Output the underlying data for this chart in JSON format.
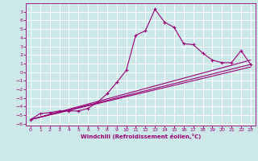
{
  "xlabel": "Windchill (Refroidissement éolien,°C)",
  "bg_color": "#cce8e8",
  "grid_color": "#ffffff",
  "line_color": "#990077",
  "xlim": [
    -0.5,
    23.5
  ],
  "ylim": [
    -6.2,
    8.0
  ],
  "x_ticks": [
    0,
    1,
    2,
    3,
    4,
    5,
    6,
    7,
    8,
    9,
    10,
    11,
    12,
    13,
    14,
    15,
    16,
    17,
    18,
    19,
    20,
    21,
    22,
    23
  ],
  "y_ticks": [
    -6,
    -5,
    -4,
    -3,
    -2,
    -1,
    0,
    1,
    2,
    3,
    4,
    5,
    6,
    7
  ],
  "line1_x": [
    0,
    1,
    2,
    3,
    4,
    5,
    6,
    7,
    8,
    9,
    10,
    11,
    12,
    13,
    14,
    15,
    16,
    17,
    18,
    19,
    20,
    21,
    22,
    23
  ],
  "line1_y": [
    -5.5,
    -4.8,
    -4.7,
    -4.5,
    -4.5,
    -4.5,
    -4.2,
    -3.5,
    -2.5,
    -1.2,
    0.2,
    4.3,
    4.8,
    7.3,
    5.8,
    5.2,
    3.3,
    3.2,
    2.2,
    1.4,
    1.1,
    1.1,
    2.5,
    0.9
  ],
  "line2_x": [
    0,
    23
  ],
  "line2_y": [
    -5.5,
    1.4
  ],
  "line3_x": [
    0,
    23
  ],
  "line3_y": [
    -5.5,
    0.9
  ],
  "line4_x": [
    0,
    23
  ],
  "line4_y": [
    -5.5,
    0.6
  ]
}
